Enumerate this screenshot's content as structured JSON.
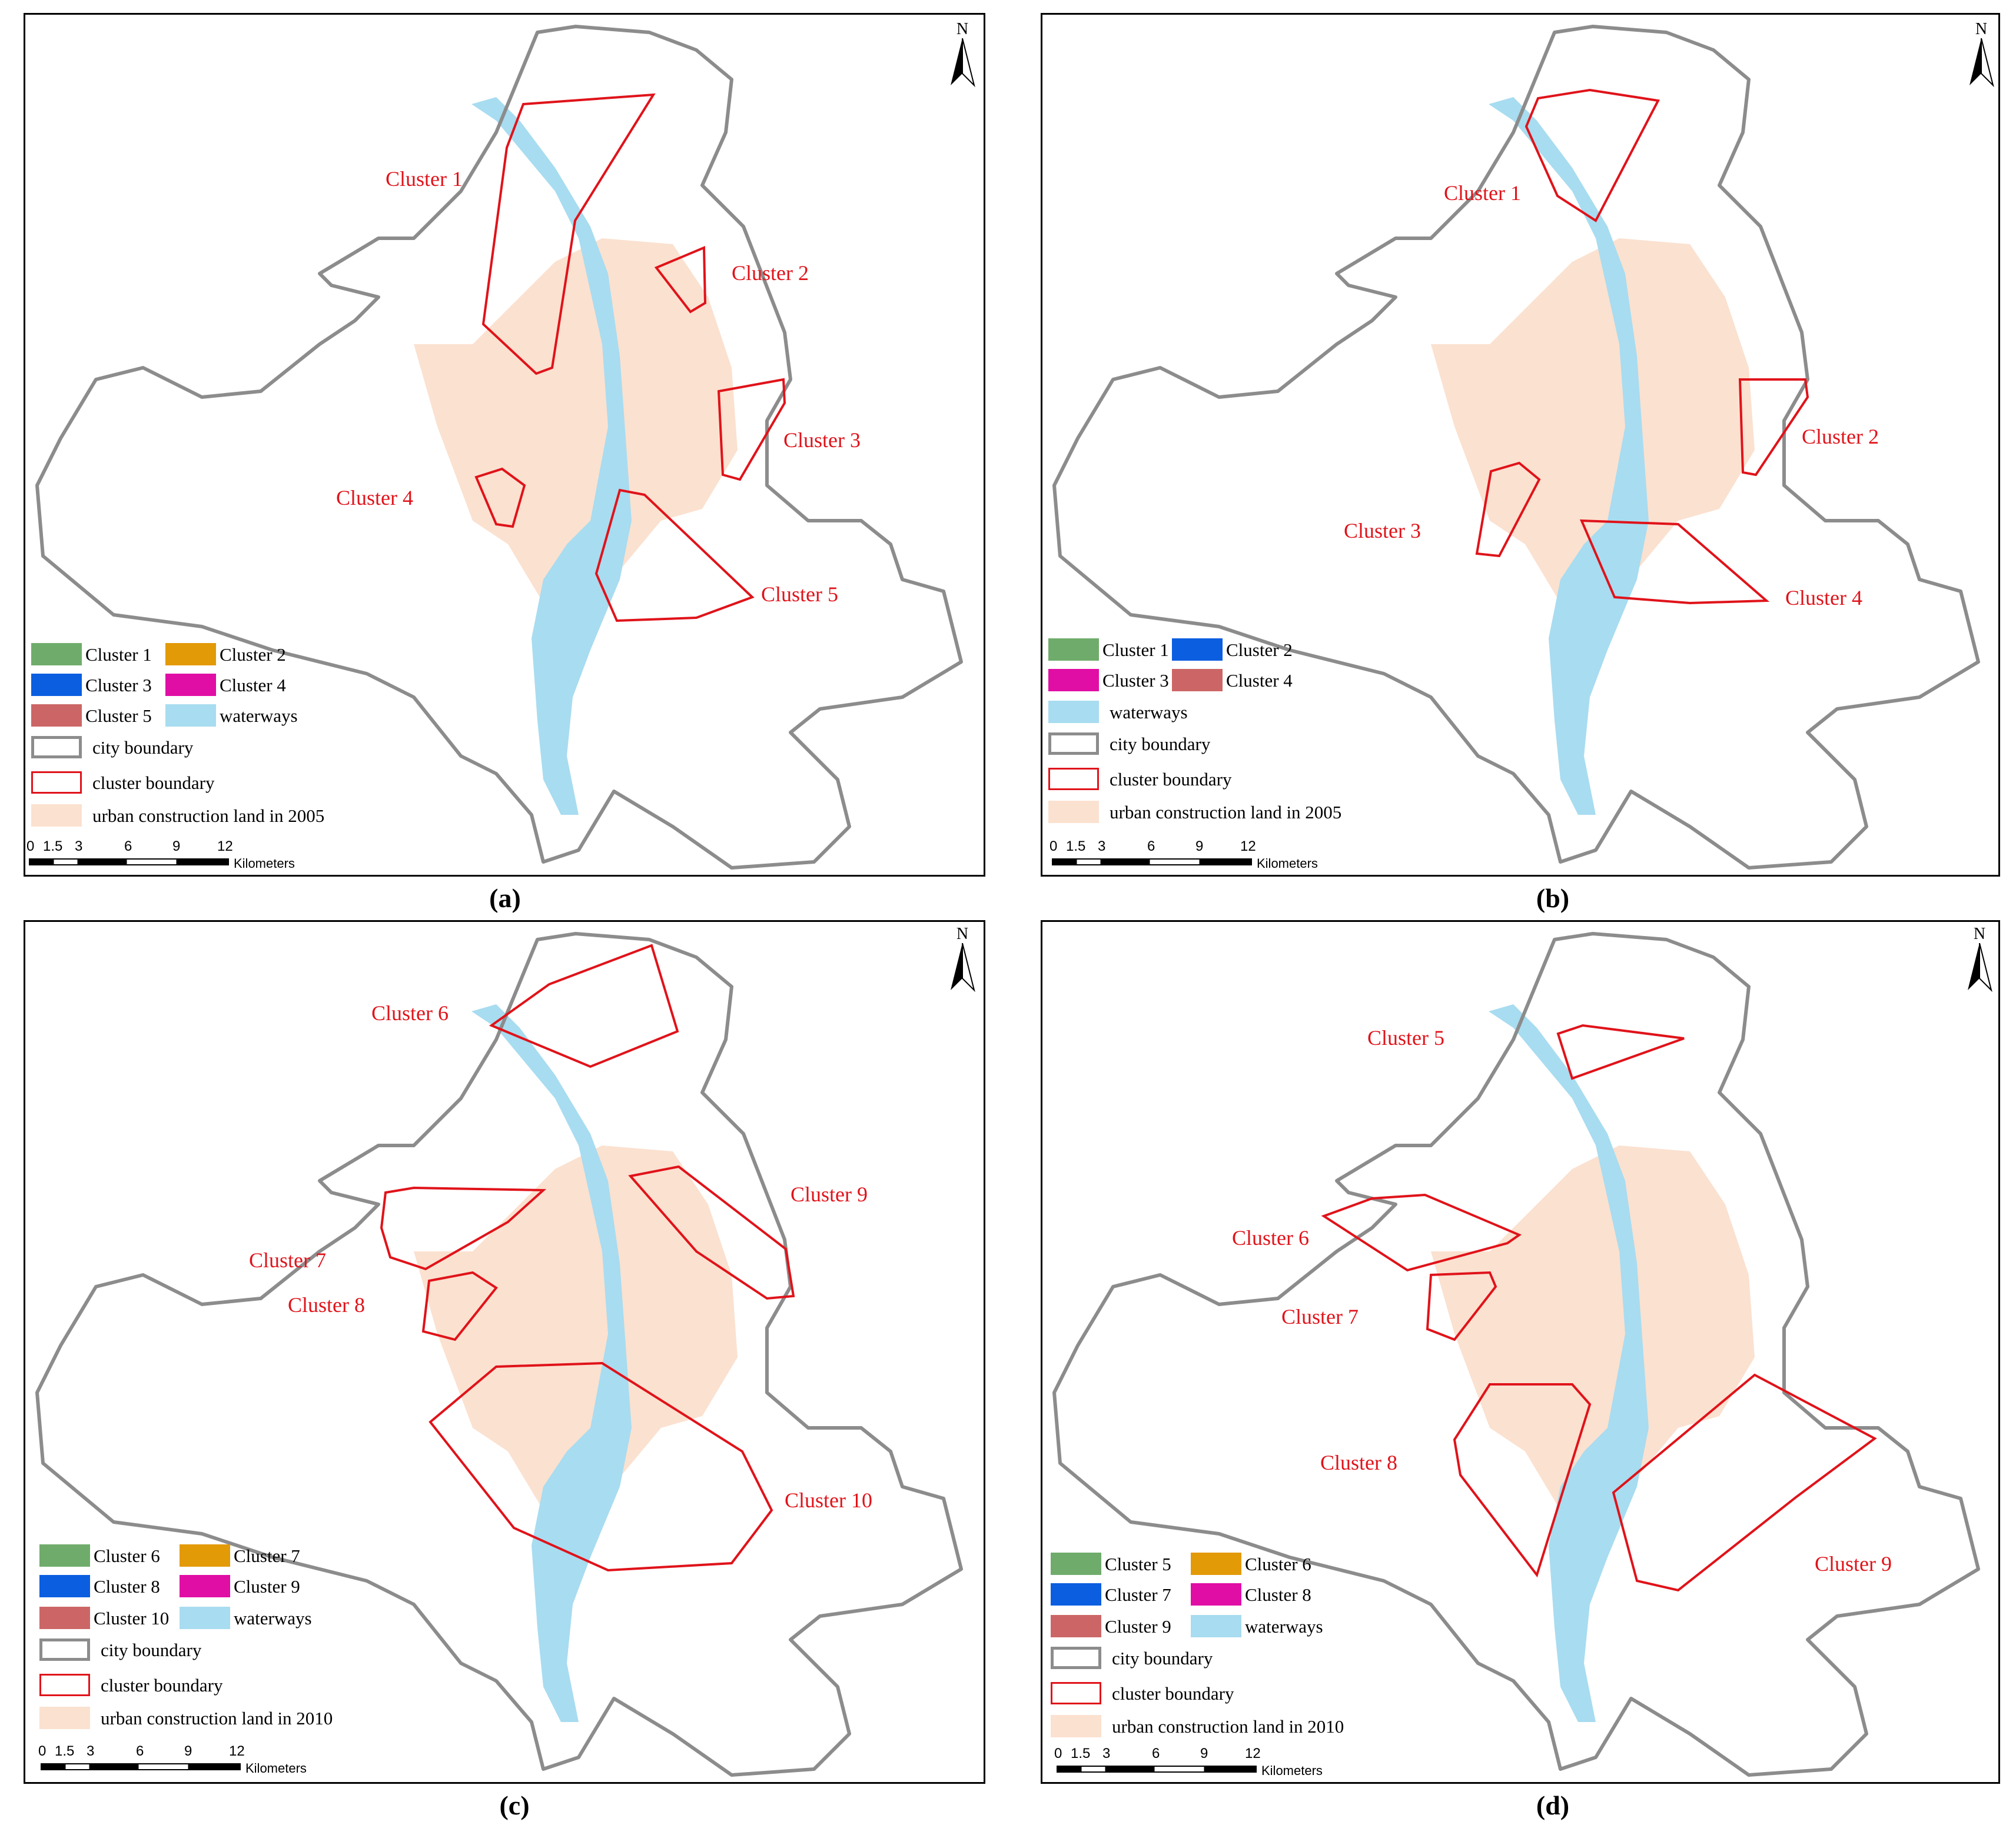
{
  "panels": {
    "a": {
      "caption": "(a)",
      "cluster_labels": [
        "Cluster 1",
        "Cluster 2",
        "Cluster 3",
        "Cluster 4",
        "Cluster 5"
      ],
      "legend": {
        "items": [
          "Cluster 1",
          "Cluster 2",
          "Cluster 3",
          "Cluster 4",
          "Cluster 5",
          "waterways"
        ],
        "city_boundary": "city boundary",
        "cluster_boundary": "cluster boundary",
        "urban_land": "urban construction land in 2005"
      }
    },
    "b": {
      "caption": "(b)",
      "cluster_labels": [
        "Cluster 1",
        "Cluster 2",
        "Cluster 3",
        "Cluster 4"
      ],
      "legend": {
        "items": [
          "Cluster 1",
          "Cluster 2",
          "Cluster 3",
          "Cluster 4"
        ],
        "waterways": "waterways",
        "city_boundary": "city boundary",
        "cluster_boundary": "cluster boundary",
        "urban_land": "urban construction land in 2005"
      }
    },
    "c": {
      "caption": "(c)",
      "cluster_labels": [
        "Cluster 6",
        "Cluster 7",
        "Cluster 8",
        "Cluster 9",
        "Cluster 10"
      ],
      "legend": {
        "items": [
          "Cluster 6",
          "Cluster 7",
          "Cluster 8",
          "Cluster 9",
          "Cluster 10",
          "waterways"
        ],
        "city_boundary": "city boundary",
        "cluster_boundary": "cluster boundary",
        "urban_land": "urban construction land in 2010"
      }
    },
    "d": {
      "caption": "(d)",
      "cluster_labels": [
        "Cluster 5",
        "Cluster 6",
        "Cluster 7",
        "Cluster 8",
        "Cluster 9"
      ],
      "legend": {
        "items": [
          "Cluster 5",
          "Cluster 6",
          "Cluster 7",
          "Cluster 8",
          "Cluster 9",
          "waterways"
        ],
        "city_boundary": "city boundary",
        "cluster_boundary": "cluster boundary",
        "urban_land": "urban construction land in 2010"
      }
    }
  },
  "north_arrow": "N",
  "scale_bar": {
    "ticks": [
      "0",
      "1.5",
      "3",
      "6",
      "9",
      "12"
    ],
    "unit": "Kilometers"
  },
  "colors": {
    "cluster_green": "#6fac6b",
    "cluster_orange": "#e39a07",
    "cluster_blue": "#0b5ee0",
    "cluster_magenta": "#e00ea5",
    "cluster_red": "#cc6666",
    "waterways": "#a8dcf0",
    "urban_land": "#fbe1d0",
    "city_boundary": "#8c8c8c",
    "cluster_boundary": "#e0131a"
  }
}
